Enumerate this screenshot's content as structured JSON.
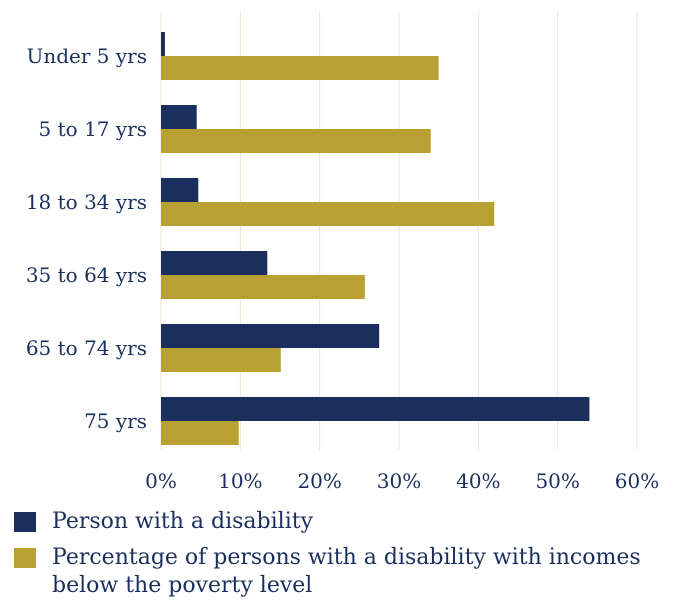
{
  "chart_data": {
    "type": "bar",
    "orientation": "horizontal",
    "categories": [
      "Under 5 yrs",
      "5 to 17 yrs",
      "18 to 34 yrs",
      "35 to 64 yrs",
      "65 to 74 yrs",
      "75 yrs"
    ],
    "series": [
      {
        "name": "Person with a disability",
        "color": "#1b2f5e",
        "values": [
          0.5,
          4.5,
          4.7,
          13.4,
          27.5,
          54.0
        ]
      },
      {
        "name": "Percentage of persons with a disability with incomes below the poverty level",
        "color": "#b8a132",
        "values": [
          35.0,
          34.0,
          42.0,
          25.7,
          15.1,
          9.8
        ]
      }
    ],
    "xlim": [
      0,
      60
    ],
    "xticks": [
      "0%",
      "10%",
      "20%",
      "30%",
      "40%",
      "50%",
      "60%"
    ],
    "grid": "vertical",
    "legend_position": "bottom"
  }
}
